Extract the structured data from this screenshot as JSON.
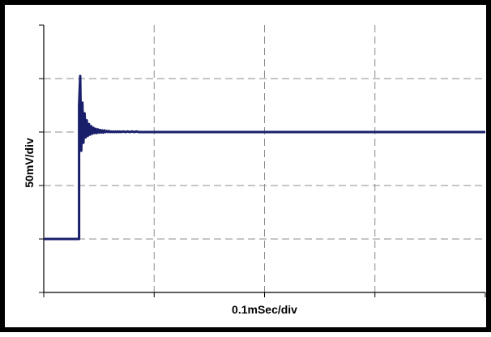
{
  "chart_data": {
    "type": "line",
    "title": "",
    "xlabel": "0.1mSec/div",
    "ylabel": "50mV/div",
    "xlim": [
      0,
      4
    ],
    "ylim": [
      -3,
      2
    ],
    "x_divisions": 4,
    "y_divisions": 5,
    "grid": true,
    "grid_style": "dashed",
    "tick_labels_shown": false,
    "legend": "none",
    "series": [
      {
        "color": "#1a1f6b",
        "x": [
          0.0,
          0.32,
          0.32,
          0.33,
          0.34,
          0.35,
          0.36,
          0.37,
          0.38,
          0.39,
          0.4,
          0.41,
          0.42,
          0.43,
          0.44,
          0.45,
          0.46,
          0.47,
          0.48,
          0.49,
          0.5,
          0.51,
          0.52,
          0.53,
          0.54,
          0.55,
          0.56,
          0.57,
          0.58,
          0.59,
          0.6,
          0.61,
          0.62,
          0.63,
          0.64,
          0.65,
          0.66,
          0.67,
          0.68,
          0.69,
          0.7,
          0.72,
          0.74,
          0.76,
          0.78,
          0.8,
          0.82,
          0.84,
          0.86,
          0.88,
          0.9,
          0.94,
          1.0,
          1.5,
          2.0,
          2.5,
          3.0,
          3.5,
          4.0
        ],
        "y": [
          -2.0,
          -2.0,
          0.5,
          1.05,
          -0.35,
          0.55,
          -0.2,
          0.35,
          -0.1,
          0.22,
          -0.07,
          0.15,
          -0.05,
          0.11,
          -0.03,
          0.08,
          -0.02,
          0.06,
          -0.02,
          0.05,
          -0.01,
          0.04,
          -0.01,
          0.03,
          -0.01,
          0.03,
          0.0,
          0.02,
          0.0,
          0.02,
          0.0,
          0.01,
          0.0,
          0.01,
          0.0,
          0.01,
          0.0,
          0.01,
          0.0,
          0.01,
          0.0,
          0.01,
          0.0,
          0.01,
          0.0,
          0.01,
          0.0,
          0.01,
          0.0,
          0.0,
          0.0,
          0.0,
          0.0,
          0.0,
          0.0,
          0.0,
          0.0,
          0.0,
          0.0
        ]
      }
    ]
  }
}
